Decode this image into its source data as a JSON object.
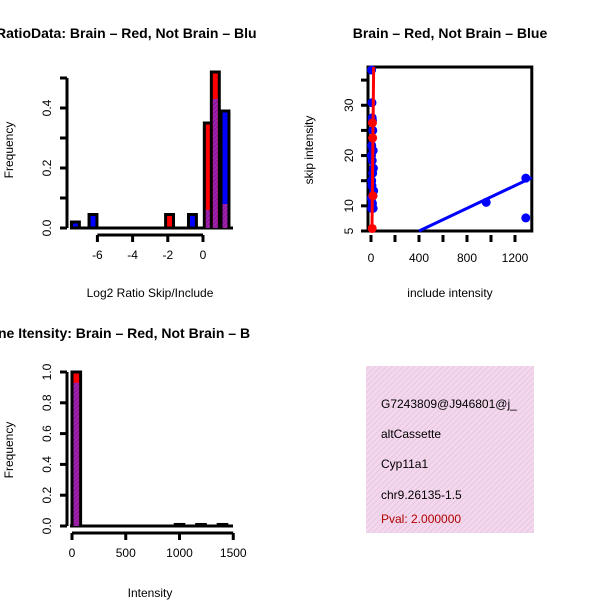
{
  "colors": {
    "red": "#ff0000",
    "blue": "#0000ff",
    "purple": "#9a1aa8",
    "panel_bg": "#f6d6ee",
    "pval": "#b00000"
  },
  "chart_data": [
    {
      "type": "bar",
      "title": "RatioData: Brain – Red, Not Brain – Blu",
      "xlabel": "Log2 Ratio Skip/Include",
      "ylabel": "Frequency",
      "xticks": [
        -6,
        -4,
        -2,
        0
      ],
      "yticks": [
        0.0,
        0.2,
        0.4
      ],
      "ytick_labels": [
        "0.0",
        "0.2",
        "0.4"
      ],
      "ylim": [
        0,
        0.5
      ],
      "bars": [
        {
          "x": -7.25,
          "red": 0,
          "blue": 0.02
        },
        {
          "x": -6.25,
          "red": 0,
          "blue": 0.045
        },
        {
          "x": -1.9,
          "red": 0.045,
          "blue": 0
        },
        {
          "x": -0.6,
          "red": 0,
          "blue": 0.045
        },
        {
          "x": 0.3,
          "red": 0.35,
          "blue": 0.06
        },
        {
          "x": 0.7,
          "red": 0.52,
          "blue": 0.43
        },
        {
          "x": 1.25,
          "red": 0.08,
          "blue": 0.39
        }
      ]
    },
    {
      "type": "scatter",
      "title": "Brain – Red, Not Brain – Blue",
      "xlabel": "include intensity",
      "ylabel": "skip intensity",
      "xticks": [
        0,
        400,
        800,
        1200
      ],
      "xminor": [
        200,
        600,
        1000
      ],
      "yticks": [
        5,
        10,
        20,
        30
      ],
      "yminor": [
        15,
        25,
        35
      ],
      "xlim": [
        -25,
        1340
      ],
      "ylim": [
        5,
        37.6
      ],
      "series": [
        {
          "name": "Not Brain",
          "color": "blue",
          "points": [
            [
              5,
              37
            ],
            [
              8,
              30.5
            ],
            [
              10,
              27.5
            ],
            [
              12,
              27
            ],
            [
              15,
              25
            ],
            [
              6,
              22
            ],
            [
              18,
              21
            ],
            [
              4,
              20
            ],
            [
              10,
              19
            ],
            [
              20,
              17.5
            ],
            [
              14,
              16.5
            ],
            [
              6,
              15
            ],
            [
              8,
              14
            ],
            [
              22,
              13
            ],
            [
              16,
              12
            ],
            [
              4,
              11.5
            ],
            [
              12,
              10.5
            ],
            [
              6,
              9.5
            ],
            [
              18,
              9.5
            ],
            [
              960,
              10.7
            ],
            [
              1290,
              15.5
            ],
            [
              1290,
              7.6
            ]
          ],
          "fit": [
            [
              400,
              5
            ],
            [
              1340,
              15.6
            ]
          ]
        },
        {
          "name": "Brain",
          "color": "red",
          "points": [
            [
              12,
              26.5
            ],
            [
              14,
              23.5
            ],
            [
              10,
              5.5
            ],
            [
              16,
              12
            ]
          ],
          "fit": [
            [
              8,
              5
            ],
            [
              22,
              37.6
            ]
          ]
        }
      ]
    },
    {
      "type": "bar",
      "title": "ne Itensity: Brain – Red, Not Brain – B",
      "xlabel": "Intensity",
      "ylabel": "Frequency",
      "xticks": [
        0,
        500,
        1000,
        1500
      ],
      "yticks": [
        0.0,
        0.2,
        0.4,
        0.6,
        0.8,
        1.0
      ],
      "ytick_labels": [
        "0.0",
        "0.2",
        "0.4",
        "0.6",
        "0.8",
        "1.0"
      ],
      "ylim": [
        0,
        1.0
      ],
      "bars": [
        {
          "x": 40,
          "red": 1.0,
          "blue": 0.93,
          "w": 80
        },
        {
          "x": 1000,
          "red": 0,
          "blue": 0.01,
          "w": 80
        },
        {
          "x": 1200,
          "red": 0,
          "blue": 0.01,
          "w": 80
        },
        {
          "x": 1400,
          "red": 0,
          "blue": 0.01,
          "w": 80
        }
      ]
    }
  ],
  "info_panel": {
    "id": "G7243809@J946801@j_",
    "event_type": "altCassette",
    "gene": "Cyp11a1",
    "location": "chr9.26135-1.5",
    "pval": "Pval: 2.000000"
  }
}
